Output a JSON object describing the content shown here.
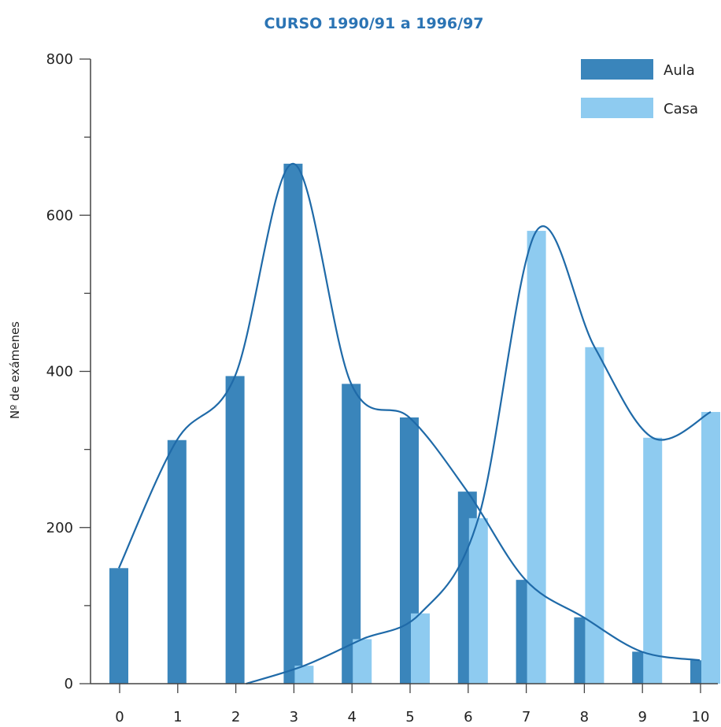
{
  "chart_data": {
    "type": "bar",
    "title": "CURSO 1990/91 a 1996/97",
    "ylabel": "Nº de exámenes",
    "xlabel": "",
    "categories": [
      "0",
      "1",
      "2",
      "3",
      "4",
      "5",
      "6",
      "7",
      "8",
      "9",
      "10"
    ],
    "series": [
      {
        "name": "Aula",
        "color": "#3a85bb",
        "values": [
          148,
          312,
          394,
          666,
          384,
          341,
          246,
          133,
          85,
          41,
          30
        ]
      },
      {
        "name": "Casa",
        "color": "#8ecbf0",
        "values": [
          0,
          0,
          0,
          23,
          57,
          90,
          212,
          580,
          431,
          315,
          348
        ]
      }
    ],
    "ylim": [
      0,
      800
    ],
    "yticks": [
      "0",
      "200",
      "400",
      "600",
      "800"
    ],
    "legend": "top-right",
    "grid": false,
    "smooth_curves": true,
    "curve_color": "#1f6aa8"
  }
}
